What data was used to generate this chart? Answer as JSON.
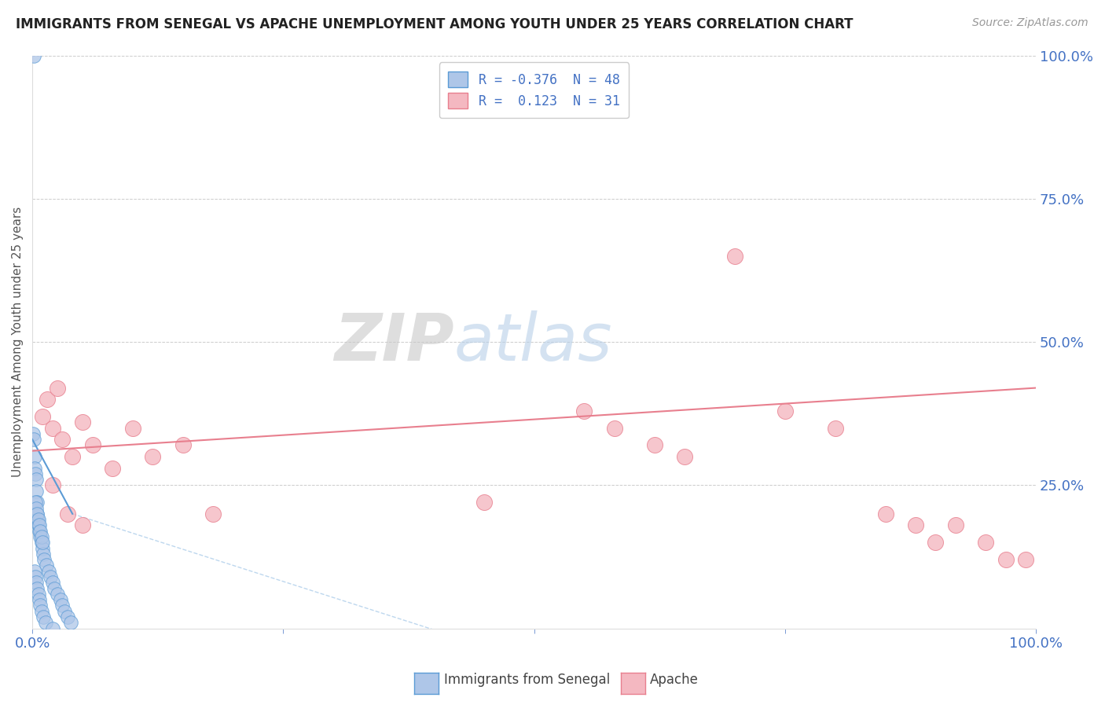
{
  "title": "IMMIGRANTS FROM SENEGAL VS APACHE UNEMPLOYMENT AMONG YOUTH UNDER 25 YEARS CORRELATION CHART",
  "source": "Source: ZipAtlas.com",
  "ylabel": "Unemployment Among Youth under 25 years",
  "xlim": [
    0,
    100
  ],
  "ylim": [
    0,
    100
  ],
  "legend_entries": [
    {
      "label": "R = -0.376  N = 48",
      "color": "#aec6e8",
      "edgecolor": "#5b9bd5"
    },
    {
      "label": "R =  0.123  N = 31",
      "color": "#f4b8c1",
      "edgecolor": "#e87f8e"
    }
  ],
  "blue_x": [
    0.1,
    0.15,
    0.2,
    0.25,
    0.3,
    0.35,
    0.4,
    0.45,
    0.5,
    0.55,
    0.6,
    0.7,
    0.8,
    0.9,
    1.0,
    1.1,
    1.2,
    1.4,
    1.6,
    1.8,
    2.0,
    2.2,
    2.5,
    2.8,
    3.0,
    3.2,
    3.5,
    3.8,
    0.3,
    0.4,
    0.5,
    0.6,
    0.7,
    0.8,
    0.9,
    1.0,
    0.2,
    0.3,
    0.4,
    0.5,
    0.6,
    0.7,
    0.8,
    0.9,
    1.1,
    1.3,
    2.0,
    0.15
  ],
  "blue_y": [
    34,
    33,
    30,
    28,
    27,
    26,
    24,
    22,
    20,
    19,
    18,
    17,
    16,
    15,
    14,
    13,
    12,
    11,
    10,
    9,
    8,
    7,
    6,
    5,
    4,
    3,
    2,
    1,
    22,
    21,
    20,
    19,
    18,
    17,
    16,
    15,
    10,
    9,
    8,
    7,
    6,
    5,
    4,
    3,
    2,
    1,
    0,
    100
  ],
  "pink_x": [
    1.0,
    1.5,
    2.0,
    2.5,
    3.0,
    4.0,
    5.0,
    6.0,
    8.0,
    10.0,
    12.0,
    15.0,
    18.0,
    55.0,
    58.0,
    62.0,
    65.0,
    70.0,
    75.0,
    80.0,
    85.0,
    88.0,
    90.0,
    92.0,
    95.0,
    97.0,
    99.0,
    2.0,
    3.5,
    5.0,
    45.0
  ],
  "pink_y": [
    37,
    40,
    35,
    42,
    33,
    30,
    36,
    32,
    28,
    35,
    30,
    32,
    20,
    38,
    35,
    32,
    30,
    65,
    38,
    35,
    20,
    18,
    15,
    18,
    15,
    12,
    12,
    25,
    20,
    18,
    22
  ],
  "blue_trend_x": [
    0,
    4
  ],
  "blue_trend_y": [
    33,
    20
  ],
  "pink_trend_x": [
    0,
    100
  ],
  "pink_trend_y": [
    31,
    42
  ],
  "blue_color": "#aec6e8",
  "blue_edge": "#5b9bd5",
  "pink_color": "#f4b8c1",
  "pink_edge": "#e87f8e",
  "dot_size": 160,
  "background_color": "#ffffff",
  "grid_color": "#cccccc",
  "watermark_zip": "ZIP",
  "watermark_atlas": "atlas"
}
